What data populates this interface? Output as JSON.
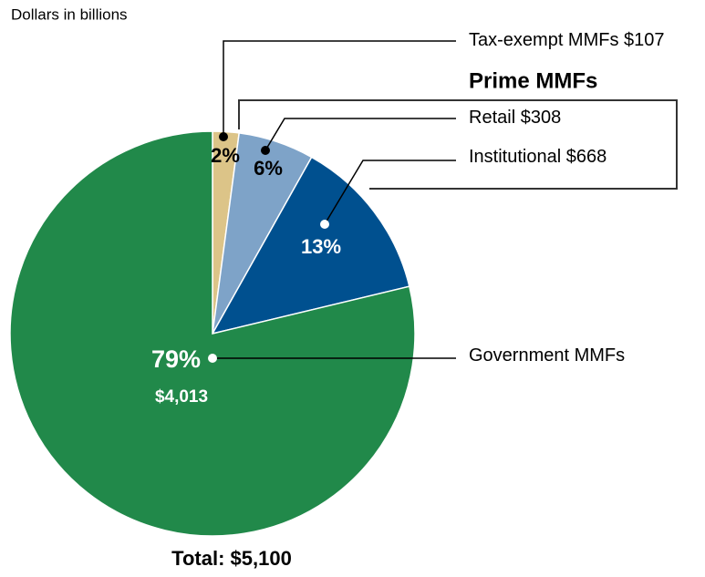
{
  "chart_data": {
    "type": "pie",
    "title": "Dollars in billions",
    "categories": [
      "Tax-exempt MMFs",
      "Retail",
      "Institutional",
      "Government MMFs"
    ],
    "values": [
      107,
      308,
      668,
      4013
    ],
    "value_labels": [
      "$107",
      "$308",
      "$668",
      "$4,013"
    ],
    "percents": [
      2,
      6,
      13,
      79
    ],
    "percent_labels": [
      "2%",
      "6%",
      "13%",
      "79%"
    ],
    "colors": [
      "#dcc488",
      "#7ea3c8",
      "#00508f",
      "#21894a"
    ],
    "group_label": "Prime MMFs",
    "total_label": "Total: $5,100"
  }
}
